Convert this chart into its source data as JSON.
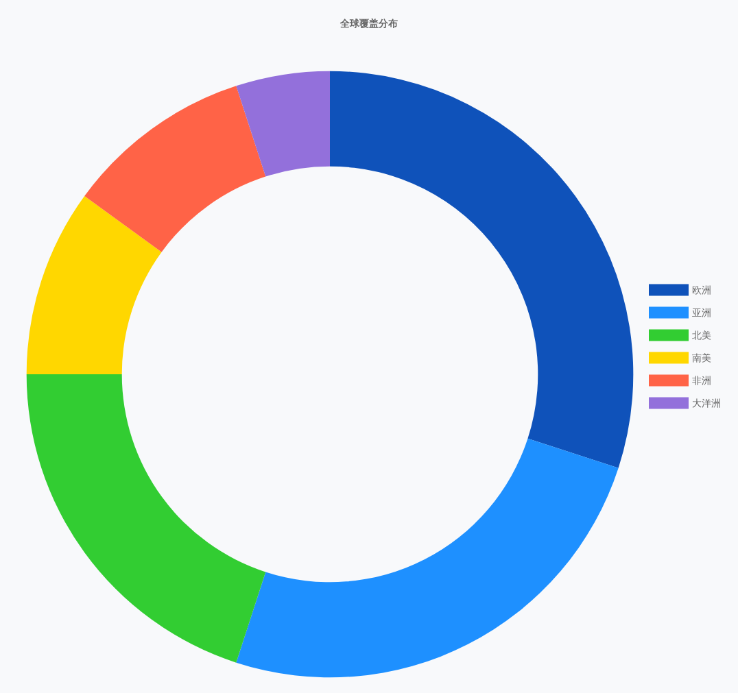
{
  "chart_data": {
    "type": "donut",
    "title": "全球覆盖分布",
    "categories": [
      "欧洲",
      "亚洲",
      "北美",
      "南美",
      "非洲",
      "大洋洲"
    ],
    "values": [
      30,
      25,
      20,
      10,
      10,
      5
    ],
    "colors": [
      "#0f52ba",
      "#1e90ff",
      "#32cd32",
      "#ffd700",
      "#ff6347",
      "#9370db"
    ],
    "legend": "right"
  }
}
